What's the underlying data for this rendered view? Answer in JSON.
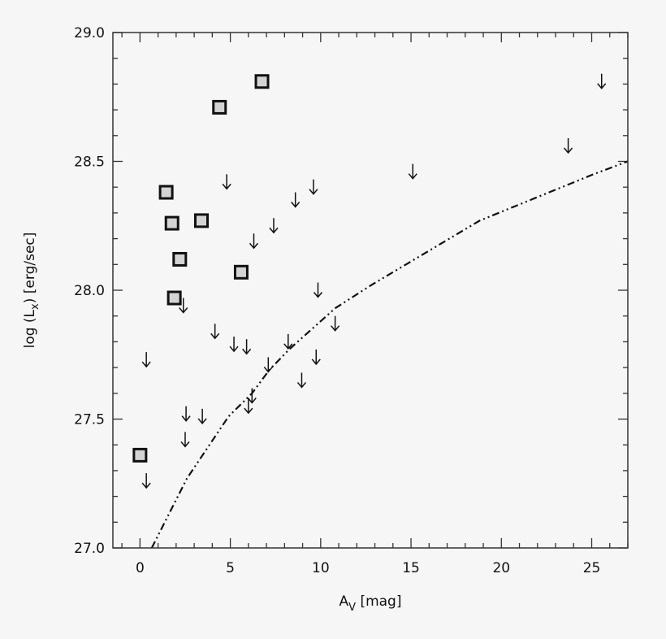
{
  "chart_data": {
    "type": "scatter",
    "title": "",
    "xlabel": "A_V [mag]",
    "xlabel_main": "A",
    "xlabel_sub": "V",
    "xlabel_unit": " [mag]",
    "ylabel_pre": "log (L",
    "ylabel_sub": "x",
    "ylabel_post": ") [erg/sec]",
    "xlim": [
      -1.5,
      27
    ],
    "ylim": [
      27.0,
      29.0
    ],
    "xticks": [
      0,
      5,
      10,
      15,
      20,
      25
    ],
    "xtick_labels": [
      "0",
      "5",
      "10",
      "15",
      "20",
      "25"
    ],
    "yticks": [
      27.0,
      27.5,
      28.0,
      28.5,
      29.0
    ],
    "ytick_labels": [
      "27.0",
      "27.5",
      "28.0",
      "28.5",
      "29.0"
    ],
    "x_minor_step": 1,
    "y_minor_step": 0.1,
    "grid": false,
    "series": [
      {
        "marker": "square",
        "fill": "#d4d4d4",
        "points": [
          [
            0.0,
            27.36
          ],
          [
            1.45,
            28.38
          ],
          [
            1.77,
            28.26
          ],
          [
            2.2,
            28.12
          ],
          [
            1.9,
            27.97
          ],
          [
            3.4,
            28.27
          ],
          [
            4.4,
            28.71
          ],
          [
            6.75,
            28.81
          ],
          [
            5.6,
            28.07
          ]
        ]
      },
      {
        "marker": "upper-limit-arrow",
        "points": [
          [
            0.35,
            27.76
          ],
          [
            0.35,
            27.29
          ],
          [
            4.8,
            28.45
          ],
          [
            2.4,
            27.97
          ],
          [
            4.15,
            27.87
          ],
          [
            5.2,
            27.82
          ],
          [
            5.9,
            27.81
          ],
          [
            2.55,
            27.55
          ],
          [
            3.45,
            27.54
          ],
          [
            2.5,
            27.45
          ],
          [
            6.0,
            27.58
          ],
          [
            6.2,
            27.62
          ],
          [
            6.3,
            28.22
          ],
          [
            7.4,
            28.28
          ],
          [
            8.6,
            28.38
          ],
          [
            9.6,
            28.43
          ],
          [
            7.1,
            27.74
          ],
          [
            8.2,
            27.83
          ],
          [
            9.85,
            28.03
          ],
          [
            9.75,
            27.77
          ],
          [
            8.95,
            27.68
          ],
          [
            10.8,
            27.9
          ],
          [
            15.1,
            28.49
          ],
          [
            23.7,
            28.59
          ],
          [
            25.55,
            28.84
          ]
        ]
      },
      {
        "marker": "line",
        "linestyle": "dash-dot-dot",
        "points": [
          [
            0.65,
            27.0
          ],
          [
            2.6,
            27.27
          ],
          [
            4.9,
            27.51
          ],
          [
            6.2,
            27.6
          ],
          [
            7.15,
            27.69
          ],
          [
            8.25,
            27.77
          ],
          [
            10.8,
            27.93
          ],
          [
            12.8,
            28.02
          ],
          [
            18.8,
            28.27
          ],
          [
            25.1,
            28.45
          ],
          [
            27.0,
            28.5
          ]
        ]
      }
    ]
  }
}
